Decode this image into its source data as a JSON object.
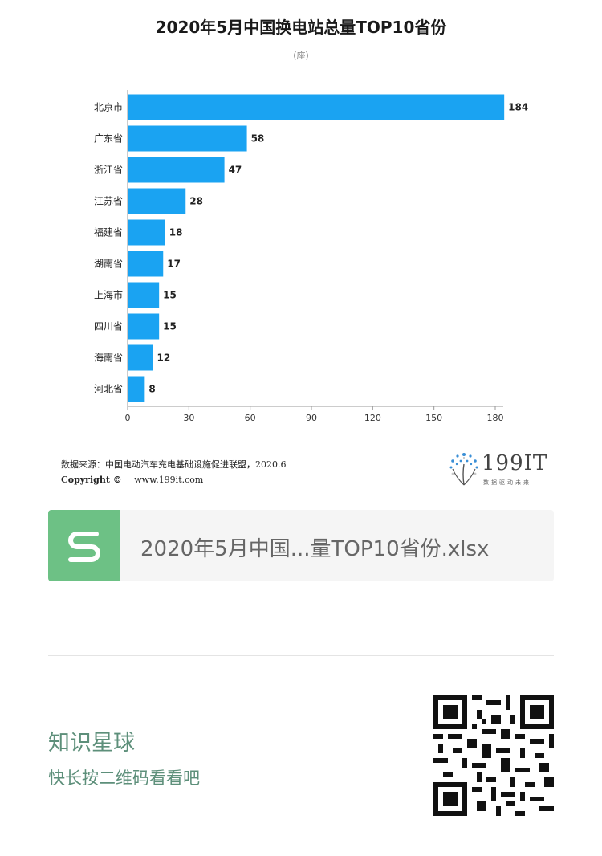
{
  "header": {
    "title": "2020年5月中国换电站总量TOP10省份",
    "subtitle": "（座）"
  },
  "chart_data": {
    "type": "bar",
    "orientation": "horizontal",
    "categories": [
      "北京市",
      "广东省",
      "浙江省",
      "江苏省",
      "福建省",
      "湖南省",
      "上海市",
      "四川省",
      "海南省",
      "河北省"
    ],
    "values": [
      184,
      58,
      47,
      28,
      18,
      17,
      15,
      15,
      12,
      8
    ],
    "xlim": [
      0,
      180
    ],
    "xticks": [
      0,
      30,
      60,
      90,
      120,
      150,
      180
    ],
    "bar_color": "#1aa3f2",
    "grid": false
  },
  "footer": {
    "source": "数据来源：中国电动汽车充电基础设施促进联盟，2020.6",
    "copyright_label": "Copyright ©",
    "copyright_url": "www.199it.com",
    "logo_text": "199IT",
    "logo_sub": "数据驱动未来"
  },
  "file_card": {
    "name": "2020年5月中国...量TOP10省份.xlsx",
    "icon": "spreadsheet-s-icon",
    "icon_color": "#6dc185"
  },
  "promo": {
    "title": "知识星球",
    "subtitle": "快长按二维码看看吧",
    "qr_icon": "qr-code-icon"
  }
}
